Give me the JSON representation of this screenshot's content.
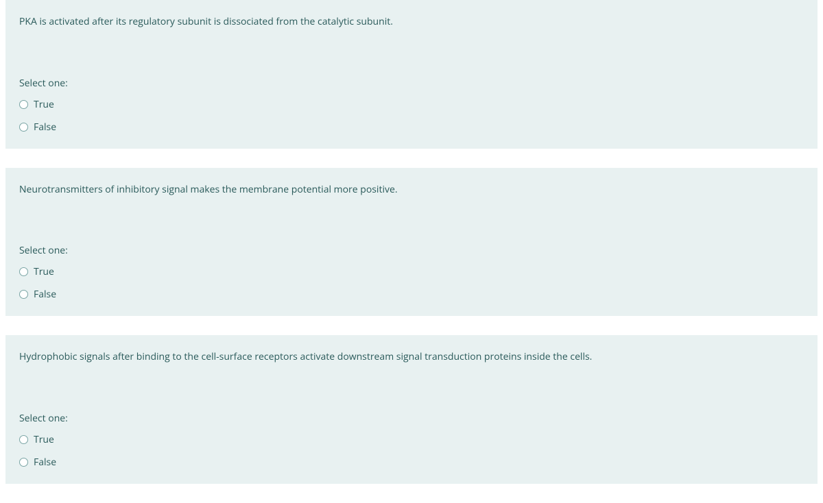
{
  "questions": [
    {
      "text": "PKA is activated after its regulatory subunit is dissociated from the catalytic subunit.",
      "select_label": "Select one:",
      "options": [
        {
          "label": "True"
        },
        {
          "label": "False"
        }
      ]
    },
    {
      "text": "Neurotransmitters of inhibitory signal makes the membrane potential more positive.",
      "select_label": "Select one:",
      "options": [
        {
          "label": "True"
        },
        {
          "label": "False"
        }
      ]
    },
    {
      "text": "Hydrophobic signals after binding to the cell-surface receptors activate downstream signal transduction proteins inside the cells.",
      "select_label": "Select one:",
      "options": [
        {
          "label": "True"
        },
        {
          "label": "False"
        }
      ]
    }
  ],
  "colors": {
    "block_background": "#e8f1f1",
    "page_background": "#ffffff",
    "text_color": "#2a5a5a",
    "radio_border": "#7aa5a5"
  }
}
